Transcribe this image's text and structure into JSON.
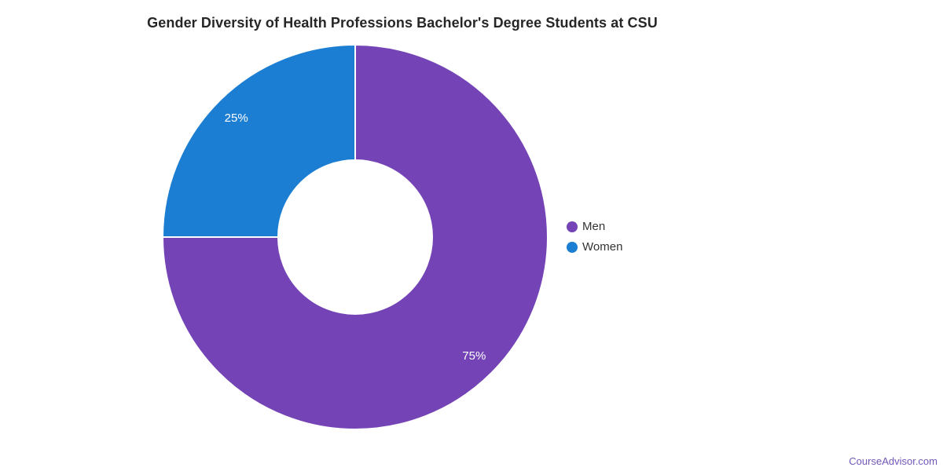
{
  "page": {
    "background": "#ffffff",
    "watermark": {
      "text": "CourseAdvisor.com",
      "color": "#7157b8"
    }
  },
  "chart_data": {
    "type": "pie",
    "subtype": "donut",
    "title": "Gender Diversity of Health Professions Bachelor's Degree Students at CSU",
    "title_color": "#262626",
    "series": [
      {
        "name": "Men",
        "value": 75,
        "label": "75%",
        "color": "#7444b6"
      },
      {
        "name": "Women",
        "value": 25,
        "label": "25%",
        "color": "#1b7ed2"
      }
    ],
    "total": 100,
    "start_angle_deg": -90,
    "direction": "clockwise",
    "inner_radius_ratio": 0.4,
    "slice_border_color": "#ffffff",
    "slice_label_color": "#ffffff",
    "legend_position": "right",
    "legend_text_color": "#333333"
  }
}
